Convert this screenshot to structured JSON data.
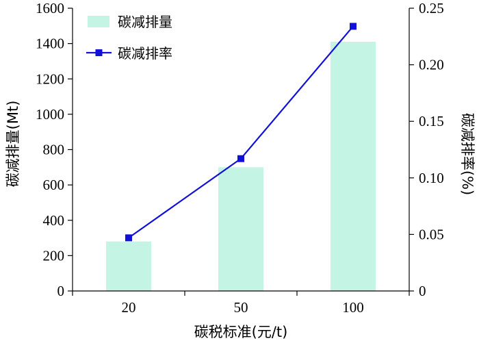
{
  "chart_data": {
    "type": "bar",
    "categories": [
      "20",
      "50",
      "100"
    ],
    "xlabel": "碳税标准(元/t)",
    "ylabel": "碳减排量(Mt)",
    "y2label": "碳减排率(%)",
    "ylim": [
      0,
      1600
    ],
    "y2lim": [
      0,
      0.25
    ],
    "yticks": [
      "0",
      "200",
      "400",
      "600",
      "800",
      "1000",
      "1200",
      "1400",
      "1600"
    ],
    "y2ticks": [
      "0",
      "0.05",
      "0.10",
      "0.15",
      "0.20",
      "0.25"
    ],
    "grid": false,
    "legend_position": "top-left",
    "series": [
      {
        "name": "碳减排量",
        "kind": "bar",
        "axis": "left",
        "color": "#c4f5e4",
        "values": [
          280,
          700,
          1410
        ]
      },
      {
        "name": "碳减排率",
        "kind": "line",
        "axis": "right",
        "color": "#1010d8",
        "marker": "square",
        "values": [
          0.047,
          0.117,
          0.234
        ]
      }
    ]
  }
}
